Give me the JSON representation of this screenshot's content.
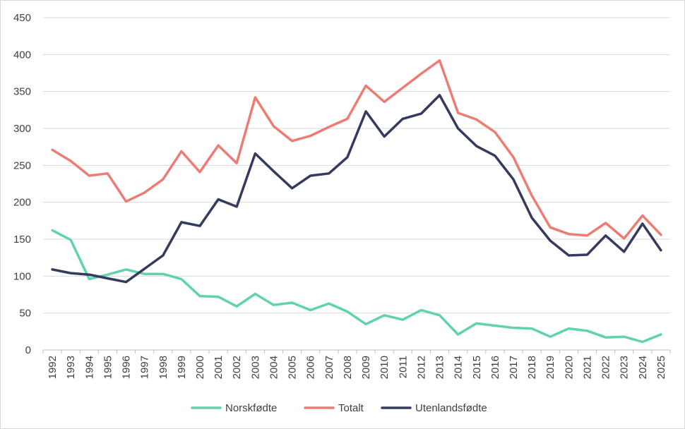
{
  "chart_data": {
    "type": "line",
    "title": "",
    "xlabel": "",
    "ylabel": "",
    "ylim": [
      0,
      450
    ],
    "yticks": [
      0,
      50,
      100,
      150,
      200,
      250,
      300,
      350,
      400,
      450
    ],
    "grid": true,
    "legend": "bottom",
    "x": [
      "1992",
      "1993",
      "1994",
      "1995",
      "1996",
      "1997",
      "1998",
      "1999",
      "2000",
      "2001",
      "2002",
      "2003",
      "2004",
      "2005",
      "2006",
      "2007",
      "2008",
      "2009",
      "2010",
      "2011",
      "2012",
      "2013",
      "2014",
      "2015",
      "2016",
      "2017",
      "2018",
      "2019",
      "2020",
      "2021",
      "2022",
      "2023",
      "2024",
      "2025"
    ],
    "series": [
      {
        "name": "Norskfødte",
        "color": "#5fd3b0",
        "values": [
          162,
          149,
          96,
          102,
          109,
          103,
          103,
          96,
          73,
          72,
          59,
          76,
          61,
          64,
          54,
          63,
          52,
          35,
          47,
          41,
          54,
          47,
          21,
          36,
          33,
          30,
          29,
          18,
          29,
          26,
          17,
          18,
          11,
          21
        ]
      },
      {
        "name": "Totalt",
        "color": "#ec7c74",
        "values": [
          271,
          256,
          236,
          239,
          201,
          213,
          231,
          269,
          241,
          277,
          253,
          342,
          303,
          283,
          290,
          302,
          313,
          358,
          336,
          355,
          374,
          392,
          321,
          312,
          295,
          261,
          209,
          166,
          157,
          155,
          172,
          151,
          182,
          156
        ]
      },
      {
        "name": "Utenlandsfødte",
        "color": "#353b5e",
        "values": [
          109,
          104,
          102,
          97,
          92,
          110,
          128,
          173,
          168,
          204,
          194,
          266,
          242,
          219,
          236,
          239,
          261,
          323,
          289,
          313,
          320,
          345,
          300,
          276,
          263,
          231,
          179,
          148,
          128,
          129,
          155,
          133,
          171,
          135
        ]
      }
    ]
  }
}
